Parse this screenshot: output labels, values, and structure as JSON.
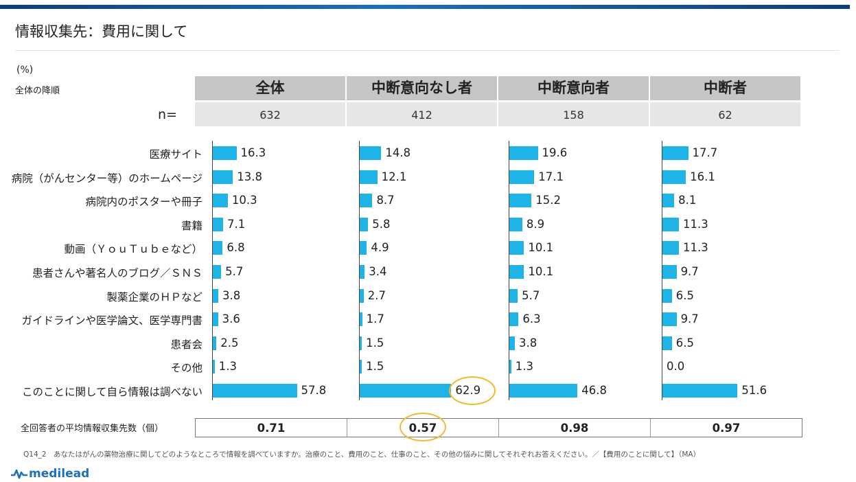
{
  "title": "情報収集先：費用に関して",
  "unit_label": "(%)",
  "sort_note": "全体の降順",
  "n_label": "n=",
  "colors": {
    "bar": "#1eb4e8",
    "header": "#c6c6c6",
    "n_row": "#e6e6e6",
    "highlight": "#f3b82c",
    "accent": "#1e6fc0"
  },
  "average_row_label": "全回答者の平均情報収集先数（個）",
  "footnote": "Q14_2　あなたはがんの薬物治療に関してどのようなところで情報を調べていますか。治療のこと、費用のこと、仕事のこと、その他の悩みに関してそれぞれお答えください。／【費用のことに関して】（MA）",
  "logo": {
    "text": "medilead",
    "icon": "pulse-icon"
  },
  "chart_data": {
    "type": "bar",
    "orientation": "horizontal",
    "categories": [
      "医療サイト",
      "病院（がんセンター等）のホームページ",
      "病院内のポスターや冊子",
      "書籍",
      "動画（ＹｏｕＴｕｂｅなど）",
      "患者さんや著名人のブログ／ＳＮＳ",
      "製薬企業のＨＰなど",
      "ガイドラインや医学論文、医学専門書",
      "患者会",
      "その他",
      "このことに関して自ら情報は調べない"
    ],
    "series": [
      {
        "name": "全体",
        "n": "632",
        "values": [
          "16.3",
          "13.8",
          "10.3",
          "7.1",
          "6.8",
          "5.7",
          "3.8",
          "3.6",
          "2.5",
          "1.3",
          "57.8"
        ],
        "average": "0.71"
      },
      {
        "name": "中断意向なし者",
        "n": "412",
        "values": [
          "14.8",
          "12.1",
          "8.7",
          "5.8",
          "4.9",
          "3.4",
          "2.7",
          "1.7",
          "1.5",
          "1.5",
          "62.9"
        ],
        "average": "0.57"
      },
      {
        "name": "中断意向者",
        "n": "158",
        "values": [
          "19.6",
          "17.1",
          "15.2",
          "8.9",
          "10.1",
          "10.1",
          "5.7",
          "6.3",
          "3.8",
          "1.3",
          "46.8"
        ],
        "average": "0.98"
      },
      {
        "name": "中断者",
        "n": "62",
        "values": [
          "17.7",
          "16.1",
          "8.1",
          "11.3",
          "11.3",
          "9.7",
          "6.5",
          "9.7",
          "6.5",
          "0.0",
          "51.6"
        ],
        "average": "0.97"
      }
    ],
    "highlighted": [
      {
        "series": 1,
        "category": 10
      },
      {
        "series": 1,
        "average": true
      }
    ]
  }
}
